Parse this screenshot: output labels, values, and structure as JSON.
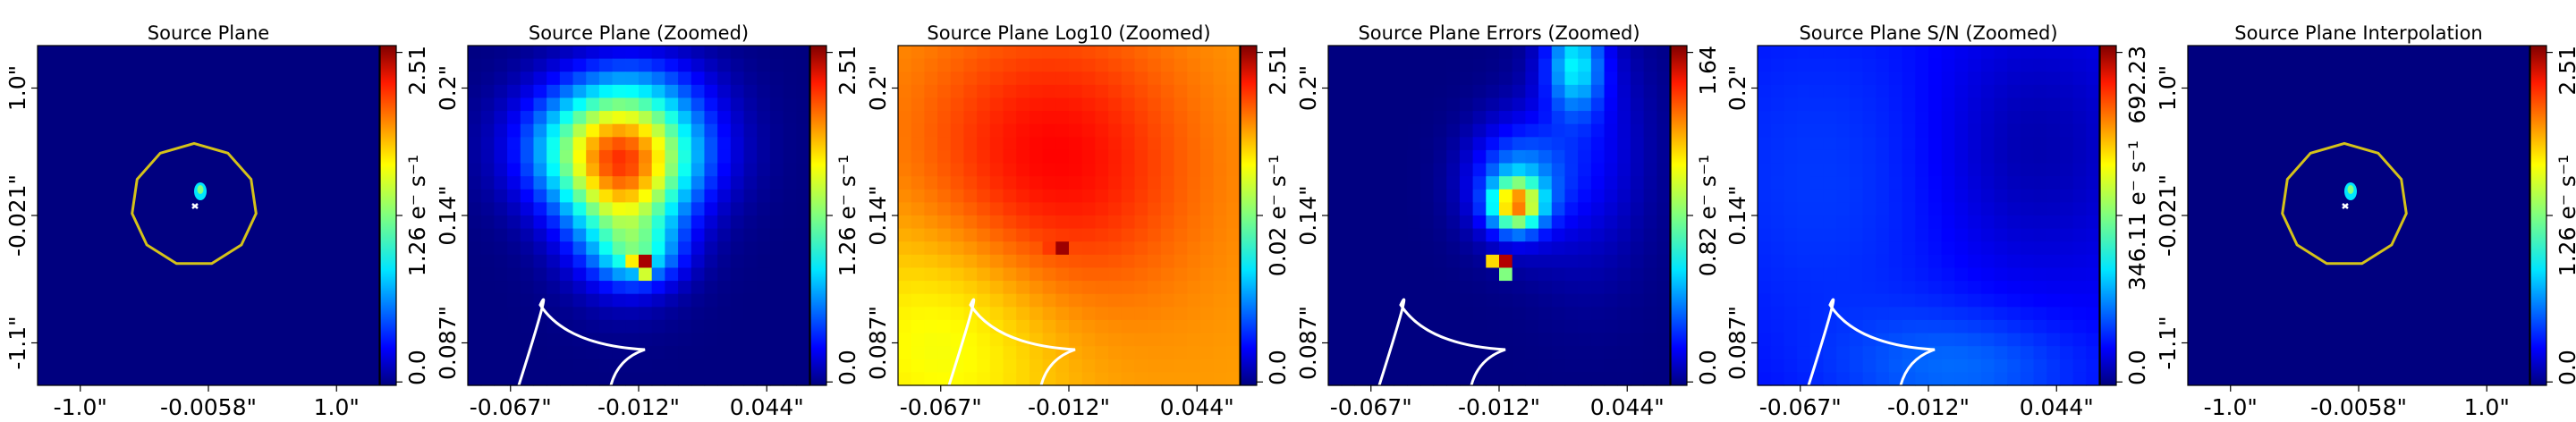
{
  "figure": {
    "panels": [
      {
        "title": "Source Plane",
        "xticks": [
          "-1.0\"",
          "-0.0058\"",
          "1.0\""
        ],
        "yticks": [
          "1.0\"",
          "-0.021\"",
          "-1.1\""
        ],
        "colorbar": {
          "ticks": [
            "2.51",
            "1.26 e⁻ s⁻¹",
            "0.0"
          ]
        }
      },
      {
        "title": "Source Plane (Zoomed)",
        "xticks": [
          "-0.067\"",
          "-0.012\"",
          "0.044\""
        ],
        "yticks": [
          "0.2\"",
          "0.14\"",
          "0.087\""
        ],
        "colorbar": {
          "ticks": [
            "2.51",
            "1.26 e⁻ s⁻¹",
            "0.0"
          ]
        }
      },
      {
        "title": "Source Plane Log10 (Zoomed)",
        "xticks": [
          "-0.067\"",
          "-0.012\"",
          "0.044\""
        ],
        "yticks": [
          "0.2\"",
          "0.14\"",
          "0.087\""
        ],
        "colorbar": {
          "ticks": [
            "2.51",
            "0.02 e⁻ s⁻¹",
            "0.0"
          ]
        }
      },
      {
        "title": "Source Plane Errors (Zoomed)",
        "xticks": [
          "-0.067\"",
          "-0.012\"",
          "0.044\""
        ],
        "yticks": [
          "0.2\"",
          "0.14\"",
          "0.087\""
        ],
        "colorbar": {
          "ticks": [
            "1.64",
            "0.82 e⁻ s⁻¹",
            "0.0"
          ]
        }
      },
      {
        "title": "Source Plane S/N (Zoomed)",
        "xticks": [
          "-0.067\"",
          "-0.012\"",
          "0.044\""
        ],
        "yticks": [
          "0.2\"",
          "0.14\"",
          "0.087\""
        ],
        "colorbar": {
          "ticks": [
            "692.23",
            "346.11 e⁻ s⁻¹",
            "0.0"
          ]
        }
      },
      {
        "title": "Source Plane Interpolation",
        "xticks": [
          "-1.0\"",
          "-0.0058\"",
          "1.0\""
        ],
        "yticks": [
          "1.0\"",
          "-0.021\"",
          "-1.1\""
        ],
        "colorbar": {
          "ticks": [
            "2.51",
            "1.26 e⁻ s⁻¹",
            "0.0"
          ]
        }
      }
    ]
  },
  "chart_data": [
    {
      "type": "heatmap",
      "title": "Source Plane",
      "colormap": "jet",
      "clim": [
        0.0,
        2.51
      ],
      "xlim": [
        -1.0,
        1.0
      ],
      "ylim": [
        -1.1,
        1.0
      ],
      "overlays": [
        "caustic (yellow)",
        "critical curve (white)"
      ]
    },
    {
      "type": "heatmap",
      "title": "Source Plane (Zoomed)",
      "colormap": "jet",
      "clim": [
        0.0,
        2.51
      ],
      "xlim": [
        -0.067,
        0.044
      ],
      "ylim": [
        0.087,
        0.2
      ],
      "overlays": [
        "caustic (white)"
      ]
    },
    {
      "type": "heatmap",
      "title": "Source Plane Log10 (Zoomed)",
      "colormap": "jet",
      "clim": [
        0.0,
        2.51
      ],
      "scale": "log10",
      "xlim": [
        -0.067,
        0.044
      ],
      "ylim": [
        0.087,
        0.2
      ],
      "overlays": [
        "caustic (white)"
      ]
    },
    {
      "type": "heatmap",
      "title": "Source Plane Errors (Zoomed)",
      "colormap": "jet",
      "clim": [
        0.0,
        1.64
      ],
      "xlim": [
        -0.067,
        0.044
      ],
      "ylim": [
        0.087,
        0.2
      ],
      "overlays": [
        "caustic (white)"
      ]
    },
    {
      "type": "heatmap",
      "title": "Source Plane S/N (Zoomed)",
      "colormap": "jet",
      "clim": [
        0.0,
        692.23
      ],
      "xlim": [
        -0.067,
        0.044
      ],
      "ylim": [
        0.087,
        0.2
      ],
      "overlays": [
        "caustic (white)"
      ]
    },
    {
      "type": "heatmap",
      "title": "Source Plane Interpolation",
      "colormap": "jet",
      "clim": [
        0.0,
        2.51
      ],
      "xlim": [
        -1.0,
        1.0
      ],
      "ylim": [
        -1.1,
        1.0
      ],
      "overlays": [
        "caustic (yellow)",
        "critical curve (white)"
      ]
    }
  ]
}
